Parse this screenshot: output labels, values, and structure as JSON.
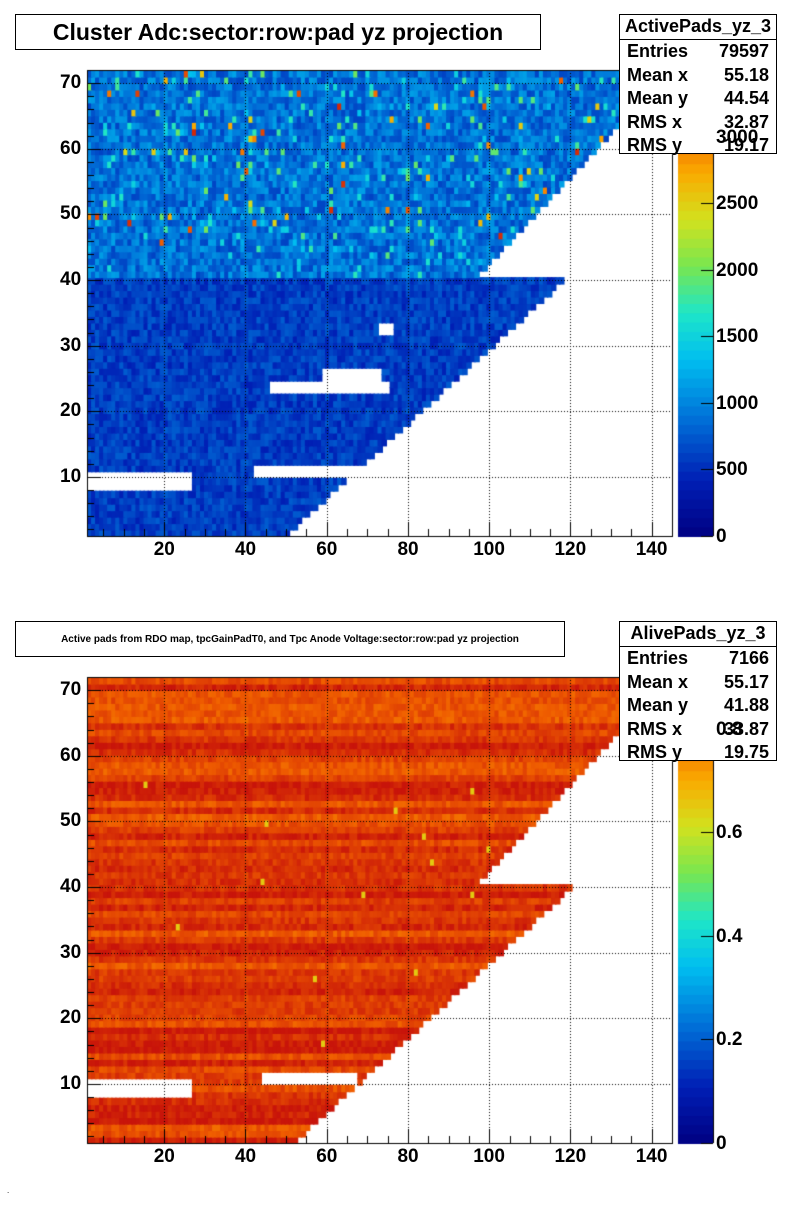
{
  "chart_data": [
    {
      "type": "heatmap",
      "title": "Cluster Adc:sector:row:pad yz projection",
      "xlim": [
        1,
        145
      ],
      "ylim": [
        1,
        72
      ],
      "x_ticks": [
        20,
        40,
        60,
        80,
        100,
        120,
        140
      ],
      "y_ticks": [
        10,
        20,
        30,
        40,
        50,
        60,
        70
      ],
      "z_min": 0,
      "z_max": 3500,
      "colorbar_ticks": [
        0,
        500,
        1000,
        1500,
        2000,
        2500,
        3000
      ],
      "colorbar_labels": [
        "0",
        "500",
        "1000",
        "1500",
        "2000",
        "2500",
        "3000"
      ],
      "grid": true,
      "stats": {
        "name": "ActivePads_yz_3",
        "rows": [
          {
            "label": "Entries",
            "value": "79597"
          },
          {
            "label": "Mean x",
            "value": "55.18"
          },
          {
            "label": "Mean y",
            "value": "44.54"
          },
          {
            "label": "RMS x",
            "value": "32.87"
          },
          {
            "label": "RMS y",
            "value": "19.17"
          }
        ]
      },
      "row_pad_extent": {
        "inner_rows": [
          1,
          40
        ],
        "outer_rows": [
          41,
          72
        ],
        "max_pad_row_1": 50,
        "max_pad_row_40": 118,
        "max_pad_row_41": 97,
        "max_pad_row_72": 144
      },
      "typical_value": 600,
      "outer_typical_value": 900,
      "hot_spot_max": 3400,
      "empty_regions": [
        {
          "x": [
            1,
            26
          ],
          "y": [
            8,
            10
          ]
        },
        {
          "x": [
            42,
            67
          ],
          "y": [
            10,
            11
          ]
        },
        {
          "x": [
            46,
            75
          ],
          "y": [
            23,
            24
          ]
        },
        {
          "x": [
            59,
            73
          ],
          "y": [
            24,
            26
          ]
        },
        {
          "x": [
            73,
            76
          ],
          "y": [
            32,
            33
          ]
        }
      ]
    },
    {
      "type": "heatmap",
      "title": "Active pads from RDO map, tpcGainPadT0,  and Tpc Anode Voltage:sector:row:pad yz projection",
      "xlim": [
        1,
        145
      ],
      "ylim": [
        1,
        72
      ],
      "x_ticks": [
        20,
        40,
        60,
        80,
        100,
        120,
        140
      ],
      "y_ticks": [
        10,
        20,
        30,
        40,
        50,
        60,
        70
      ],
      "z_min": 0,
      "z_max": 0.9,
      "colorbar_ticks": [
        0,
        0.2,
        0.4,
        0.6,
        0.8
      ],
      "colorbar_labels": [
        "0",
        "0.2",
        "0.4",
        "0.6",
        "0.8"
      ],
      "grid": true,
      "stats": {
        "name": "AlivePads_yz_3",
        "rows": [
          {
            "label": "Entries",
            "value": "7166"
          },
          {
            "label": "Mean x",
            "value": "55.17"
          },
          {
            "label": "Mean y",
            "value": "41.88"
          },
          {
            "label": "RMS x",
            "value": "33.87"
          },
          {
            "label": "RMS y",
            "value": "19.75"
          }
        ]
      },
      "row_pad_extent": {
        "inner_rows": [
          1,
          40
        ],
        "outer_rows": [
          41,
          72
        ],
        "max_pad_row_1": 52,
        "max_pad_row_40": 120,
        "max_pad_row_41": 97,
        "max_pad_row_72": 144
      },
      "typical_value": 0.85,
      "empty_regions": [
        {
          "x": [
            1,
            26
          ],
          "y": [
            8,
            10
          ]
        },
        {
          "x": [
            44,
            67
          ],
          "y": [
            10,
            11
          ]
        }
      ]
    }
  ]
}
